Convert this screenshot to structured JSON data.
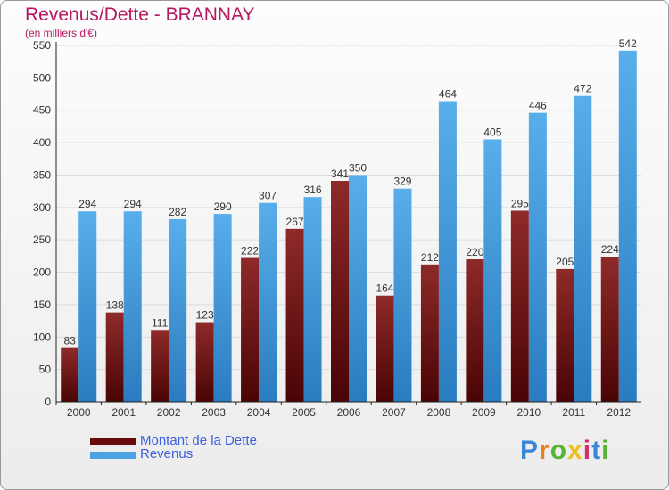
{
  "title": "Revenus/Dette - BRANNAY",
  "subtitle": "(en milliers d'€)",
  "colors": {
    "title": "#b5175f",
    "dette": "#7a1010",
    "revenus": "#4ba3e4",
    "legend_text": "#3b5fe0",
    "grid": "#dcdcdc"
  },
  "legend": [
    {
      "label": "Montant de la Dette",
      "color": "#6a0a0a"
    },
    {
      "label": "Revenus",
      "color": "#4ba3e4"
    }
  ],
  "logo": {
    "text": "Proxiti",
    "letter_colors": [
      "#3a86d8",
      "#e8811f",
      "#57b533",
      "#e8c01f",
      "#d03070",
      "#3a86d8",
      "#57b533"
    ]
  },
  "chart_data": {
    "type": "bar",
    "categories": [
      "2000",
      "2001",
      "2002",
      "2003",
      "2004",
      "2005",
      "2006",
      "2007",
      "2008",
      "2009",
      "2010",
      "2011",
      "2012"
    ],
    "series": [
      {
        "name": "Montant de la Dette",
        "values": [
          83,
          138,
          111,
          123,
          222,
          267,
          341,
          164,
          212,
          220,
          295,
          205,
          224
        ]
      },
      {
        "name": "Revenus",
        "values": [
          294,
          294,
          282,
          290,
          307,
          316,
          350,
          329,
          464,
          405,
          446,
          472,
          542
        ]
      }
    ],
    "title": "Revenus/Dette - BRANNAY",
    "subtitle": "(en milliers d'€)",
    "ylim": [
      0,
      550
    ],
    "yticks": [
      0,
      50,
      100,
      150,
      200,
      250,
      300,
      350,
      400,
      450,
      500,
      550
    ],
    "grid": true,
    "legend_position": "bottom-left"
  }
}
